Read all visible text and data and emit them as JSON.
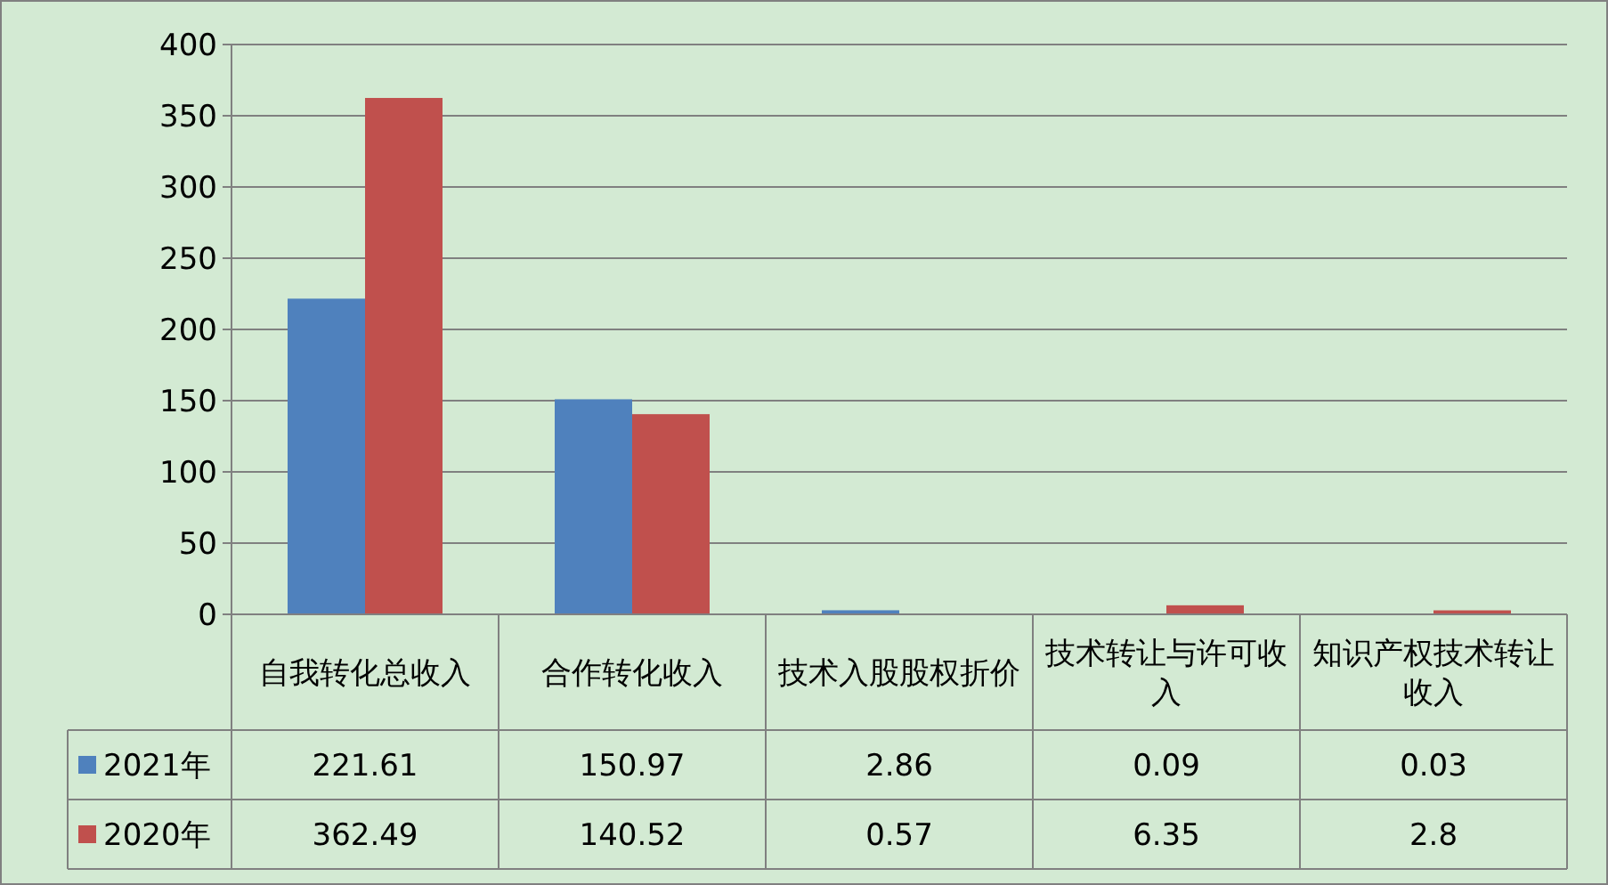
{
  "chart_data": {
    "type": "bar",
    "categories": [
      "自我转化总收入",
      "合作转化收入",
      "技术入股股权折价",
      "技术转让与许可收入",
      "知识产权技术转让收入"
    ],
    "series": [
      {
        "name": "2021年",
        "color": "#4f81bd",
        "values": [
          221.61,
          150.97,
          2.86,
          0.09,
          0.03
        ]
      },
      {
        "name": "2020年",
        "color": "#c0504d",
        "values": [
          362.49,
          140.52,
          0.57,
          6.35,
          2.8
        ]
      }
    ],
    "ylim": [
      0,
      400
    ],
    "yticks": [
      0,
      50,
      100,
      150,
      200,
      250,
      300,
      350,
      400
    ],
    "grid": "y",
    "legend": "bottom",
    "data_labels": true
  }
}
